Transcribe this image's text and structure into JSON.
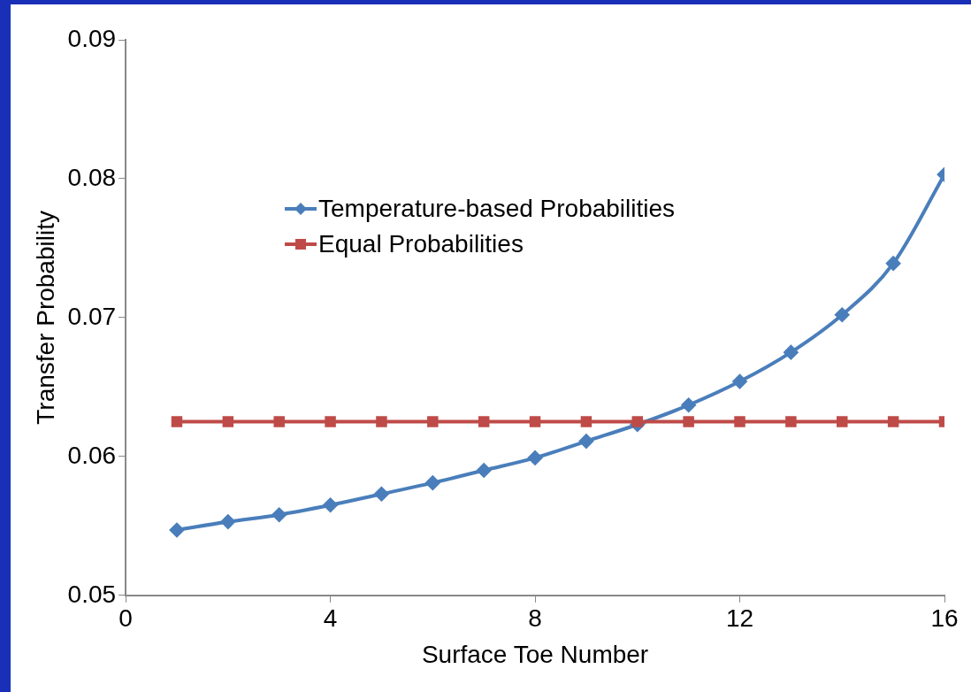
{
  "chart_data": {
    "type": "line",
    "xlabel": "Surface Toe Number",
    "ylabel": "Transfer Probability",
    "x": [
      1,
      2,
      3,
      4,
      5,
      6,
      7,
      8,
      9,
      10,
      11,
      12,
      13,
      14,
      15,
      16
    ],
    "series": [
      {
        "name": "Temperature-based Probabilities",
        "color": "#4a7ebb",
        "marker": "diamond",
        "values": [
          0.0547,
          0.0553,
          0.0558,
          0.0565,
          0.0573,
          0.0581,
          0.059,
          0.0599,
          0.0611,
          0.0623,
          0.0637,
          0.0654,
          0.0675,
          0.0702,
          0.0739,
          0.0803
        ]
      },
      {
        "name": "Equal Probabilities",
        "color": "#be4b48",
        "marker": "square",
        "values": [
          0.0625,
          0.0625,
          0.0625,
          0.0625,
          0.0625,
          0.0625,
          0.0625,
          0.0625,
          0.0625,
          0.0625,
          0.0625,
          0.0625,
          0.0625,
          0.0625,
          0.0625,
          0.0625
        ]
      }
    ],
    "xlim": [
      0,
      16
    ],
    "xticks": [
      0,
      4,
      8,
      12,
      16
    ],
    "ylim": [
      0.05,
      0.09
    ],
    "yticks": [
      0.05,
      0.06,
      0.07,
      0.08,
      0.09
    ],
    "grid": false,
    "legend": "top left",
    "line_style": "solid"
  }
}
